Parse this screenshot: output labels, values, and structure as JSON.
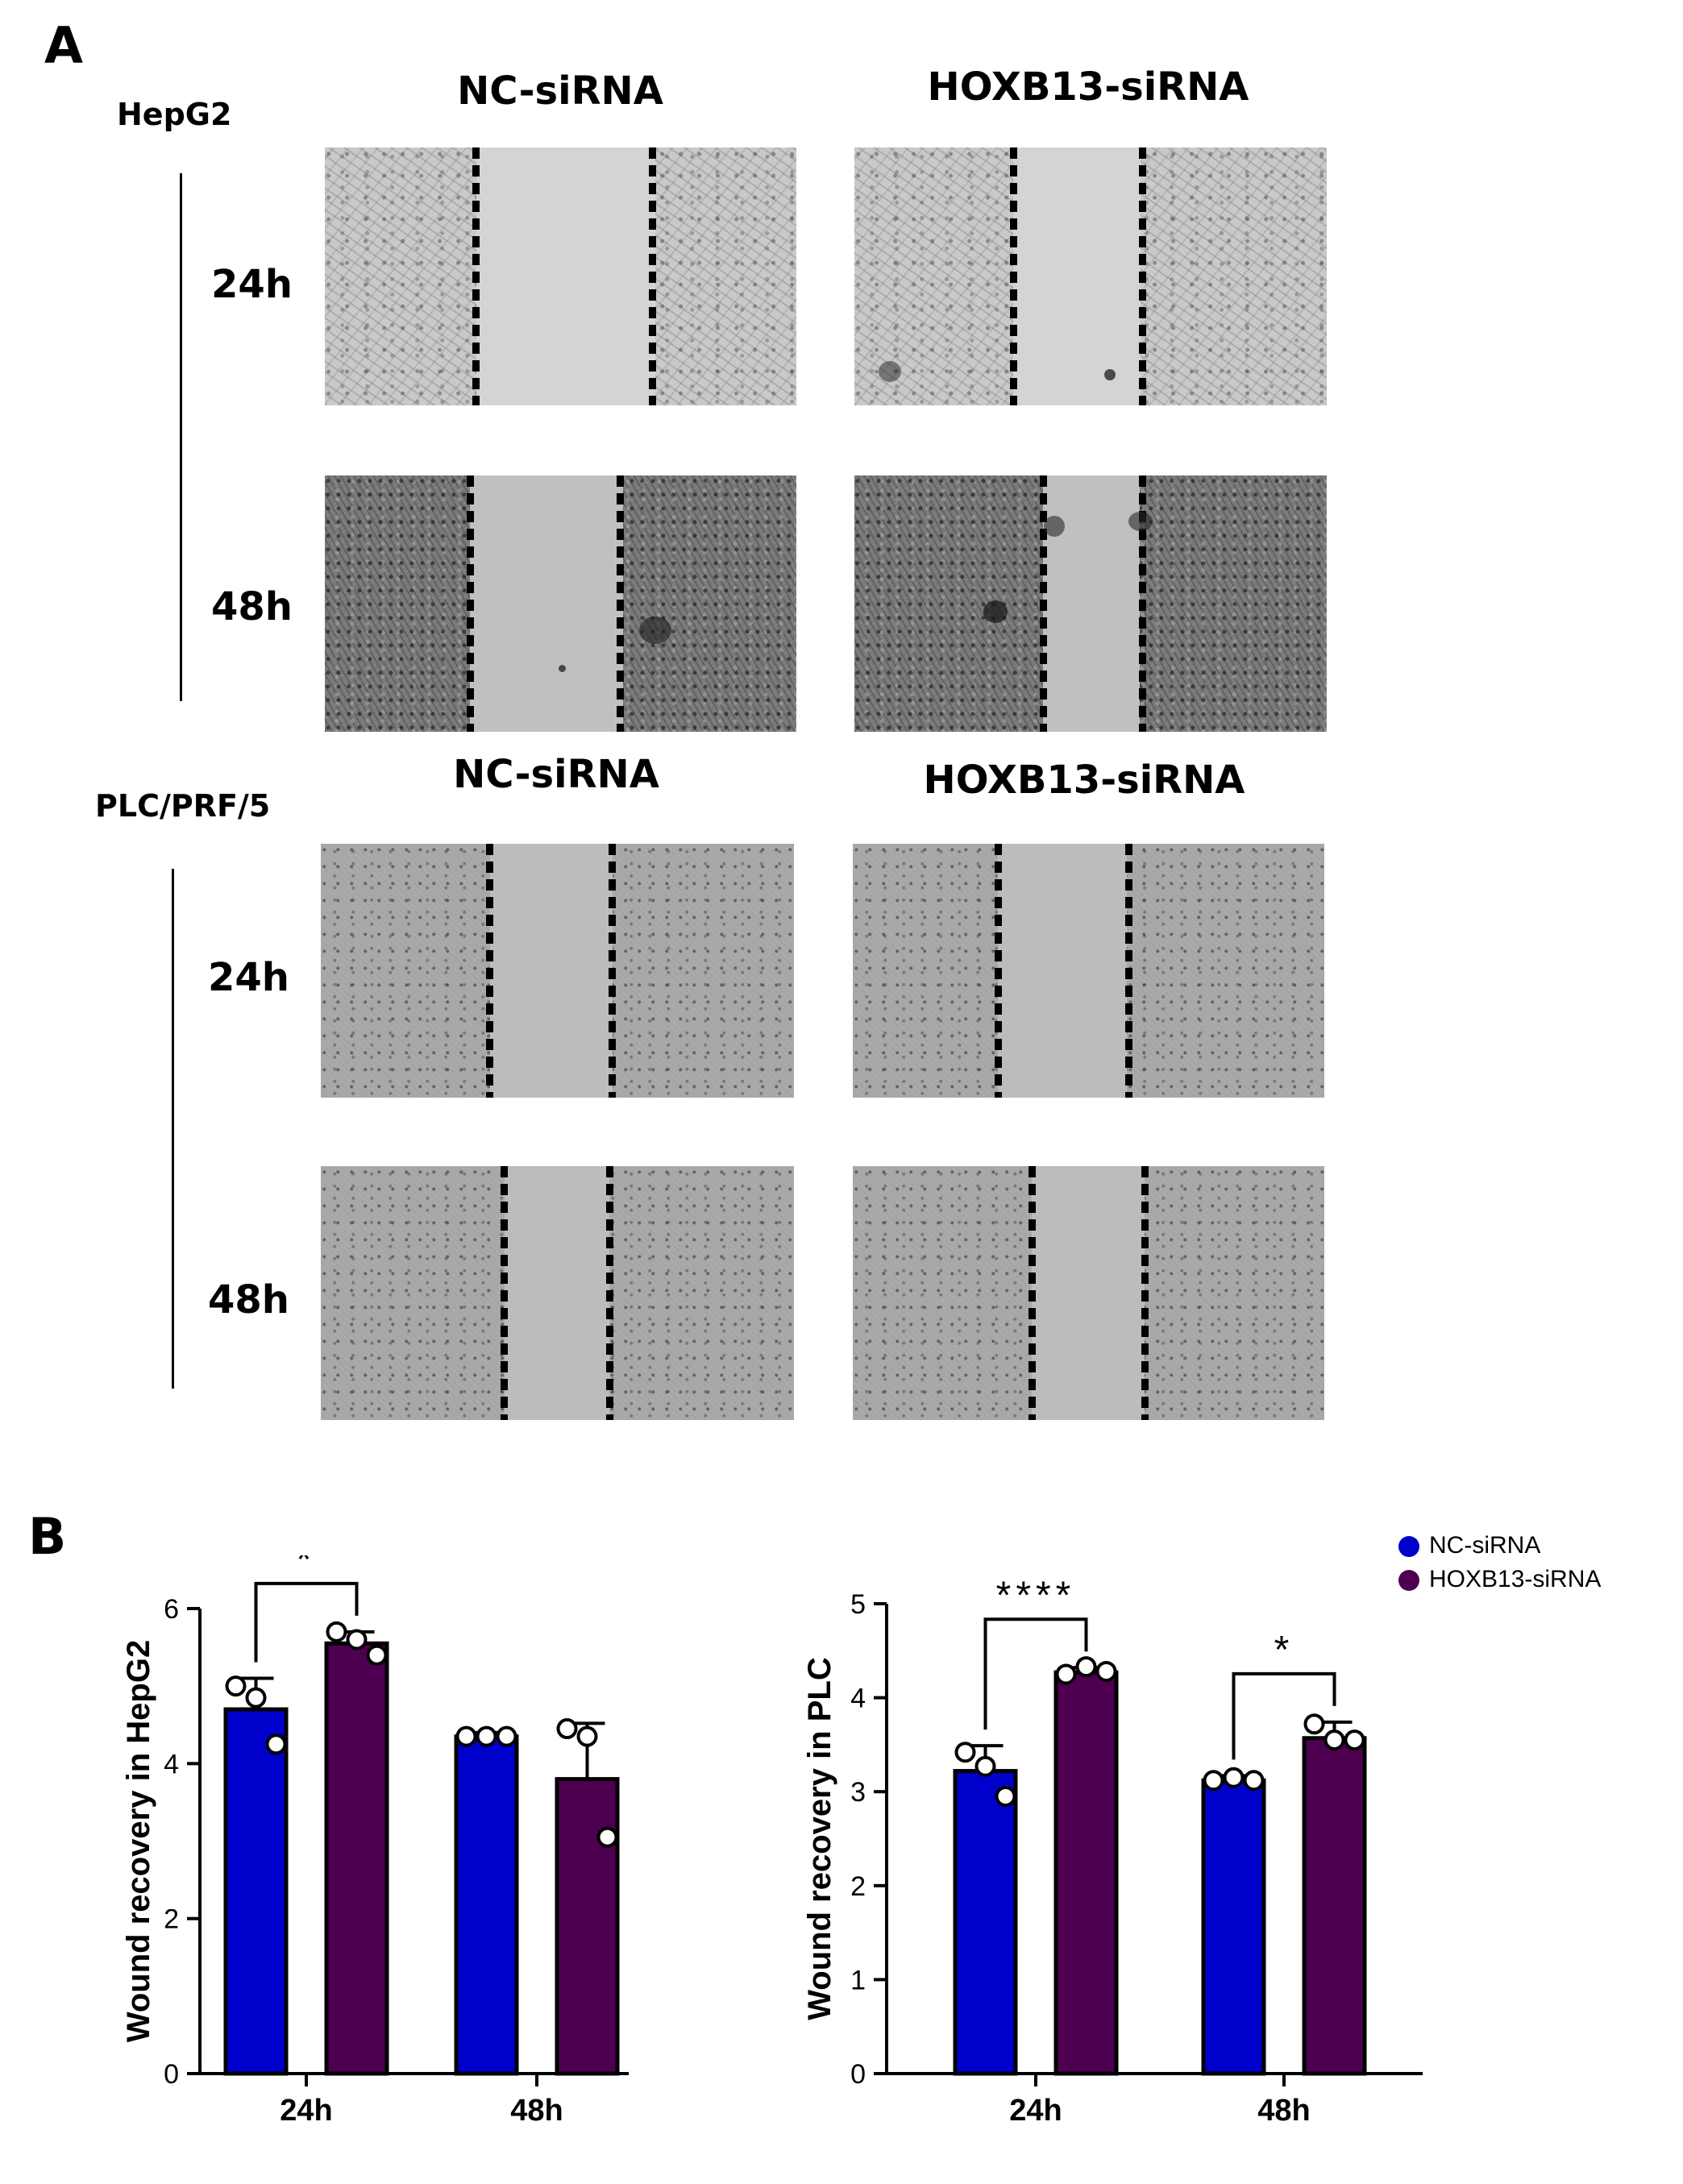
{
  "panel_a": {
    "letter": "A",
    "groups": [
      {
        "cell_line": "HepG2",
        "columns": [
          "NC-siRNA",
          "HOXB13-siRNA"
        ],
        "rows": [
          "24h",
          "48h"
        ]
      },
      {
        "cell_line": "PLC/PRF/5",
        "columns": [
          "NC-siRNA",
          "HOXB13-siRNA"
        ],
        "rows": [
          "24h",
          "48h"
        ]
      }
    ]
  },
  "panel_b": {
    "letter": "B"
  },
  "legend": {
    "items": [
      {
        "label": "NC-siRNA",
        "color": "#0000cc"
      },
      {
        "label": "HOXB13-siRNA",
        "color": "#4d0050"
      }
    ]
  },
  "chart_data": [
    {
      "type": "bar",
      "ylabel": "Wound recovery in HepG2",
      "xlabel": "",
      "categories": [
        "24h",
        "48h"
      ],
      "ylim": [
        0,
        6
      ],
      "yticks": [
        0,
        2,
        4,
        6
      ],
      "series": [
        {
          "name": "NC-siRNA",
          "color": "#0000cc",
          "values": [
            4.7,
            4.35
          ],
          "errors": [
            0.4,
            0.05
          ],
          "points": [
            [
              5.0,
              4.85,
              4.25
            ],
            [
              4.35,
              4.35,
              4.35
            ]
          ]
        },
        {
          "name": "HOXB13-siRNA",
          "color": "#4d0050",
          "values": [
            5.55,
            3.8
          ],
          "errors": [
            0.15,
            0.72
          ],
          "points": [
            [
              5.7,
              5.6,
              5.4
            ],
            [
              4.45,
              4.35,
              3.05
            ]
          ]
        }
      ],
      "significance": [
        {
          "category": "24h",
          "label": "*"
        }
      ]
    },
    {
      "type": "bar",
      "ylabel": "Wound recovery in PLC",
      "xlabel": "",
      "categories": [
        "24h",
        "48h"
      ],
      "ylim": [
        0,
        5
      ],
      "yticks": [
        0,
        1,
        2,
        3,
        4,
        5
      ],
      "series": [
        {
          "name": "NC-siRNA",
          "color": "#0000cc",
          "values": [
            3.22,
            3.12
          ],
          "errors": [
            0.27,
            0.05
          ],
          "points": [
            [
              3.42,
              3.27,
              2.95
            ],
            [
              3.12,
              3.15,
              3.12
            ]
          ]
        },
        {
          "name": "HOXB13-siRNA",
          "color": "#4d0050",
          "values": [
            4.27,
            3.57
          ],
          "errors": [
            0.05,
            0.17
          ],
          "points": [
            [
              4.25,
              4.33,
              4.28
            ],
            [
              3.72,
              3.55,
              3.55
            ]
          ]
        }
      ],
      "significance": [
        {
          "category": "24h",
          "label": "****"
        },
        {
          "category": "48h",
          "label": "*"
        }
      ]
    }
  ]
}
